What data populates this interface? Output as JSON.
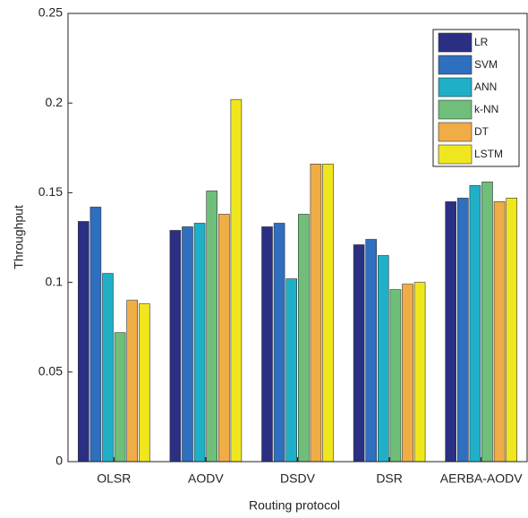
{
  "chart_data": {
    "type": "bar",
    "xlabel": "Routing protocol",
    "ylabel": "Throughput",
    "categories": [
      "OLSR",
      "AODV",
      "DSDV",
      "DSR",
      "AERBA-AODV"
    ],
    "series": [
      {
        "name": "LR",
        "color": "#2b2f84",
        "values": [
          0.134,
          0.129,
          0.131,
          0.121,
          0.145
        ]
      },
      {
        "name": "SVM",
        "color": "#2f6fbf",
        "values": [
          0.142,
          0.131,
          0.133,
          0.124,
          0.147
        ]
      },
      {
        "name": "ANN",
        "color": "#1fb0c8",
        "values": [
          0.105,
          0.133,
          0.102,
          0.115,
          0.154
        ]
      },
      {
        "name": "k-NN",
        "color": "#6fbf7a",
        "values": [
          0.072,
          0.151,
          0.138,
          0.096,
          0.156
        ]
      },
      {
        "name": "DT",
        "color": "#f0ad45",
        "values": [
          0.09,
          0.138,
          0.166,
          0.099,
          0.145
        ]
      },
      {
        "name": "LSTM",
        "color": "#f0e61e",
        "values": [
          0.088,
          0.202,
          0.166,
          0.1,
          0.147
        ]
      }
    ],
    "ylim": [
      0,
      0.25
    ],
    "yticks": [
      0,
      0.05,
      0.1,
      0.15,
      0.2,
      0.25
    ],
    "grid": false,
    "legend": "upper-right"
  }
}
